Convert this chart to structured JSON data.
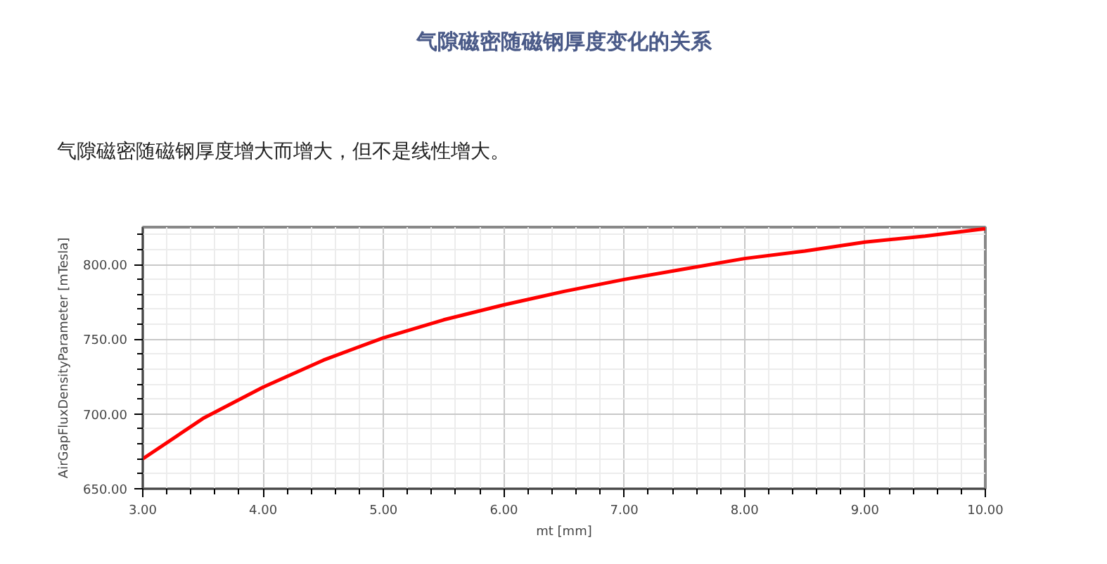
{
  "chart_data": {
    "type": "line",
    "title": "气隙磁密随磁钢厚度变化的关系",
    "subtitle": "气隙磁密随磁钢厚度增大而增大，但不是线性增大。",
    "xlabel": "mt [mm]",
    "ylabel": "AirGapFluxDensityParameter [mTesla]",
    "x": [
      3,
      3.5,
      4,
      4.5,
      5,
      5.5,
      6,
      6.5,
      7,
      7.5,
      8,
      8.5,
      9,
      9.5,
      10
    ],
    "series": [
      {
        "color": "#ff0000",
        "values": [
          670,
          697,
          718,
          736,
          751,
          763,
          773,
          782,
          790,
          797,
          804,
          809,
          815,
          819,
          824
        ]
      }
    ],
    "xlim": [
      3,
      10
    ],
    "ylim": [
      650,
      825
    ],
    "xticks": [
      {
        "value": 3,
        "label": "3.00"
      },
      {
        "value": 3.2,
        "label": null
      },
      {
        "value": 3.4,
        "label": null
      },
      {
        "value": 3.6,
        "label": null
      },
      {
        "value": 3.8,
        "label": null
      },
      {
        "value": 4,
        "label": "4.00"
      },
      {
        "value": 4.2,
        "label": null
      },
      {
        "value": 4.4,
        "label": null
      },
      {
        "value": 4.6,
        "label": null
      },
      {
        "value": 4.8,
        "label": null
      },
      {
        "value": 5,
        "label": "5.00"
      },
      {
        "value": 5.2,
        "label": null
      },
      {
        "value": 5.4,
        "label": null
      },
      {
        "value": 5.6,
        "label": null
      },
      {
        "value": 5.8,
        "label": null
      },
      {
        "value": 6,
        "label": "6.00"
      },
      {
        "value": 6.2,
        "label": null
      },
      {
        "value": 6.4,
        "label": null
      },
      {
        "value": 6.6,
        "label": null
      },
      {
        "value": 6.8,
        "label": null
      },
      {
        "value": 7,
        "label": "7.00"
      },
      {
        "value": 7.2,
        "label": null
      },
      {
        "value": 7.4,
        "label": null
      },
      {
        "value": 7.6,
        "label": null
      },
      {
        "value": 7.8,
        "label": null
      },
      {
        "value": 8,
        "label": "8.00"
      },
      {
        "value": 8.2,
        "label": null
      },
      {
        "value": 8.4,
        "label": null
      },
      {
        "value": 8.6,
        "label": null
      },
      {
        "value": 8.8,
        "label": null
      },
      {
        "value": 9,
        "label": "9.00"
      },
      {
        "value": 9.2,
        "label": null
      },
      {
        "value": 9.4,
        "label": null
      },
      {
        "value": 9.6,
        "label": null
      },
      {
        "value": 9.8,
        "label": null
      },
      {
        "value": 10,
        "label": "10.00"
      }
    ],
    "yticks": [
      {
        "value": 650,
        "label": "650.00"
      },
      {
        "value": 660,
        "label": null
      },
      {
        "value": 670,
        "label": null
      },
      {
        "value": 680,
        "label": null
      },
      {
        "value": 690,
        "label": null
      },
      {
        "value": 700,
        "label": "700.00"
      },
      {
        "value": 710,
        "label": null
      },
      {
        "value": 720,
        "label": null
      },
      {
        "value": 730,
        "label": null
      },
      {
        "value": 740,
        "label": null
      },
      {
        "value": 750,
        "label": "750.00"
      },
      {
        "value": 760,
        "label": null
      },
      {
        "value": 770,
        "label": null
      },
      {
        "value": 780,
        "label": null
      },
      {
        "value": 790,
        "label": null
      },
      {
        "value": 800,
        "label": "800.00"
      },
      {
        "value": 810,
        "label": null
      },
      {
        "value": 820,
        "label": null
      }
    ],
    "grid": true,
    "marker": "none",
    "line_style": "solid"
  }
}
